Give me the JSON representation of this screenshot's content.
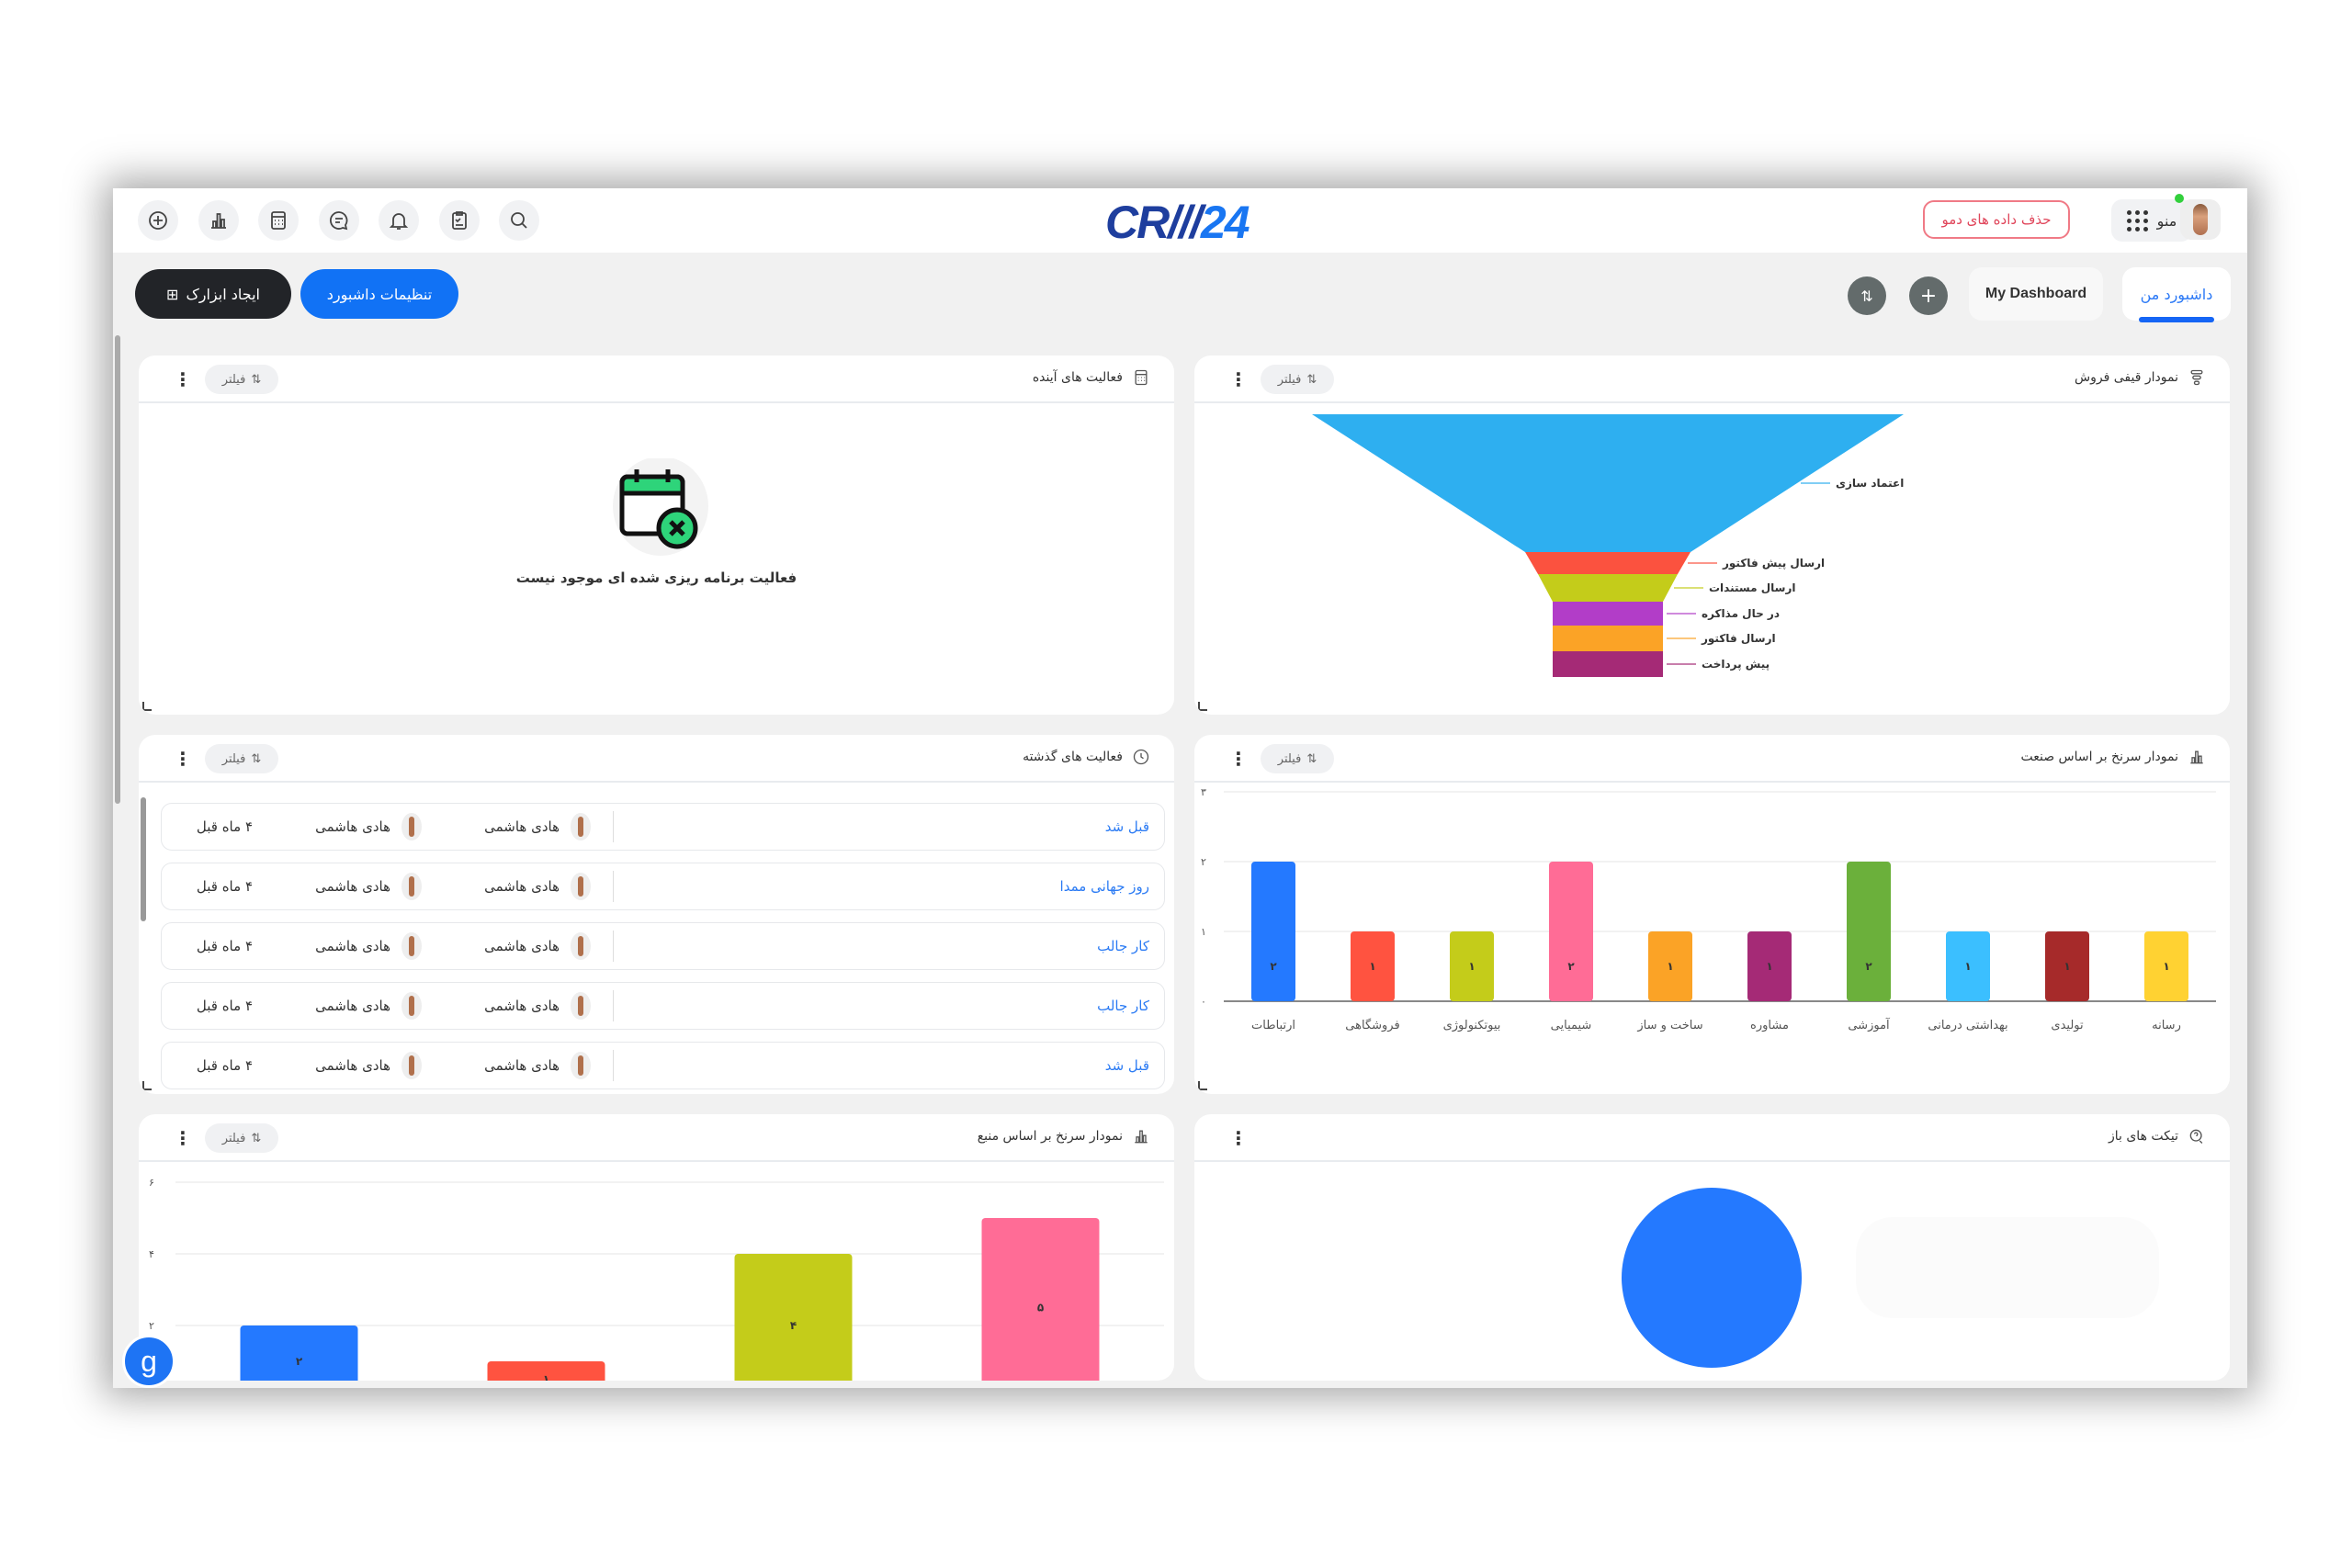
{
  "header": {
    "logo": "CRM24",
    "icons": [
      "add-circle-icon",
      "bar-chart-icon",
      "calculator-icon",
      "chat-icon",
      "bell-icon",
      "clipboard-icon",
      "search-icon"
    ],
    "demo_button": "حذف داده های دمو",
    "menu_button": "منو"
  },
  "toolbar": {
    "create_widget": "ایجاد ابزارک",
    "dashboard_settings": "تنظیمات داشبورد",
    "tabs": [
      {
        "label": "داشبورد من",
        "active": true
      },
      {
        "label": "My Dashboard",
        "active": false
      }
    ],
    "accent": "#1172f5"
  },
  "filter_label": "فیلتر",
  "panels": {
    "upcoming": {
      "title": "فعالیت های آینده",
      "empty_text": "فعالیت برنامه ریزی شده ای موجود نیست"
    },
    "funnel": {
      "title": "نمودار قیفی فروش"
    },
    "past": {
      "title": "فعالیت های گذشته",
      "rows": [
        {
          "title": "قبل شد",
          "assignee": "هادی هاشمی",
          "creator": "هادی هاشمی",
          "date": "۴ ماه قبل"
        },
        {
          "title": "روز جهانی ممدا",
          "assignee": "هادی هاشمی",
          "creator": "هادی هاشمی",
          "date": "۴ ماه قبل"
        },
        {
          "title": "کار جالب",
          "assignee": "هادی هاشمی",
          "creator": "هادی هاشمی",
          "date": "۴ ماه قبل"
        },
        {
          "title": "کار جالب",
          "assignee": "هادی هاشمی",
          "creator": "هادی هاشمی",
          "date": "۴ ماه قبل"
        },
        {
          "title": "قبل شد",
          "assignee": "هادی هاشمی",
          "creator": "هادی هاشمی",
          "date": "۴ ماه قبل"
        }
      ]
    },
    "industry": {
      "title": "نمودار سرنخ بر اساس صنعت"
    },
    "source": {
      "title": "نمودار سرنخ بر اساس منبع"
    },
    "tickets": {
      "title": "تیکت های باز"
    }
  },
  "chart_data": [
    {
      "type": "funnel",
      "stages": [
        "اعتماد سازی",
        "ارسال پیش فاکتور",
        "ارسال مستندات",
        "در حال مذاکره",
        "ارسال فاکتور",
        "پیش پرداخت"
      ],
      "colors": [
        "#2eaff0",
        "#fb523f",
        "#c4cc1a",
        "#b23dc8",
        "#fba326",
        "#a52a76"
      ]
    },
    {
      "type": "bar",
      "categories": [
        "ارتباطات",
        "فروشگاهی",
        "بیوتکنولوژی",
        "شیمیایی",
        "ساخت و ساز",
        "مشاوره",
        "آموزشی",
        "بهداشتی درمانی",
        "تولیدی",
        "رسانه"
      ],
      "values": [
        2,
        1,
        1,
        2,
        1,
        1,
        2,
        1,
        1,
        1
      ],
      "value_labels": [
        "۲",
        "۱",
        "۱",
        "۲",
        "۱",
        "۱",
        "۲",
        "۱",
        "۱",
        "۱"
      ],
      "colors": [
        "#2479ff",
        "#ff5340",
        "#c4cc1a",
        "#ff6c96",
        "#fba326",
        "#a52a76",
        "#6bb03b",
        "#3bbfff",
        "#a62a2a",
        "#ffd232"
      ],
      "yticks": [
        "۰",
        "۱",
        "۲",
        "۳"
      ],
      "ylim": [
        0,
        3
      ],
      "grid": true
    },
    {
      "type": "bar",
      "values": [
        2,
        1,
        4,
        5
      ],
      "value_labels": [
        "۲",
        "۱",
        "۴",
        "۵"
      ],
      "colors": [
        "#2479ff",
        "#ff5340",
        "#c4cc1a",
        "#ff6c96"
      ],
      "yticks": [
        "۲",
        "۴",
        "۶"
      ],
      "ytick_values": [
        2,
        4,
        6
      ],
      "ylim": [
        0,
        6
      ],
      "grid": true
    },
    {
      "type": "pie",
      "values": [
        100
      ],
      "colors": [
        "#2479ff"
      ]
    }
  ]
}
